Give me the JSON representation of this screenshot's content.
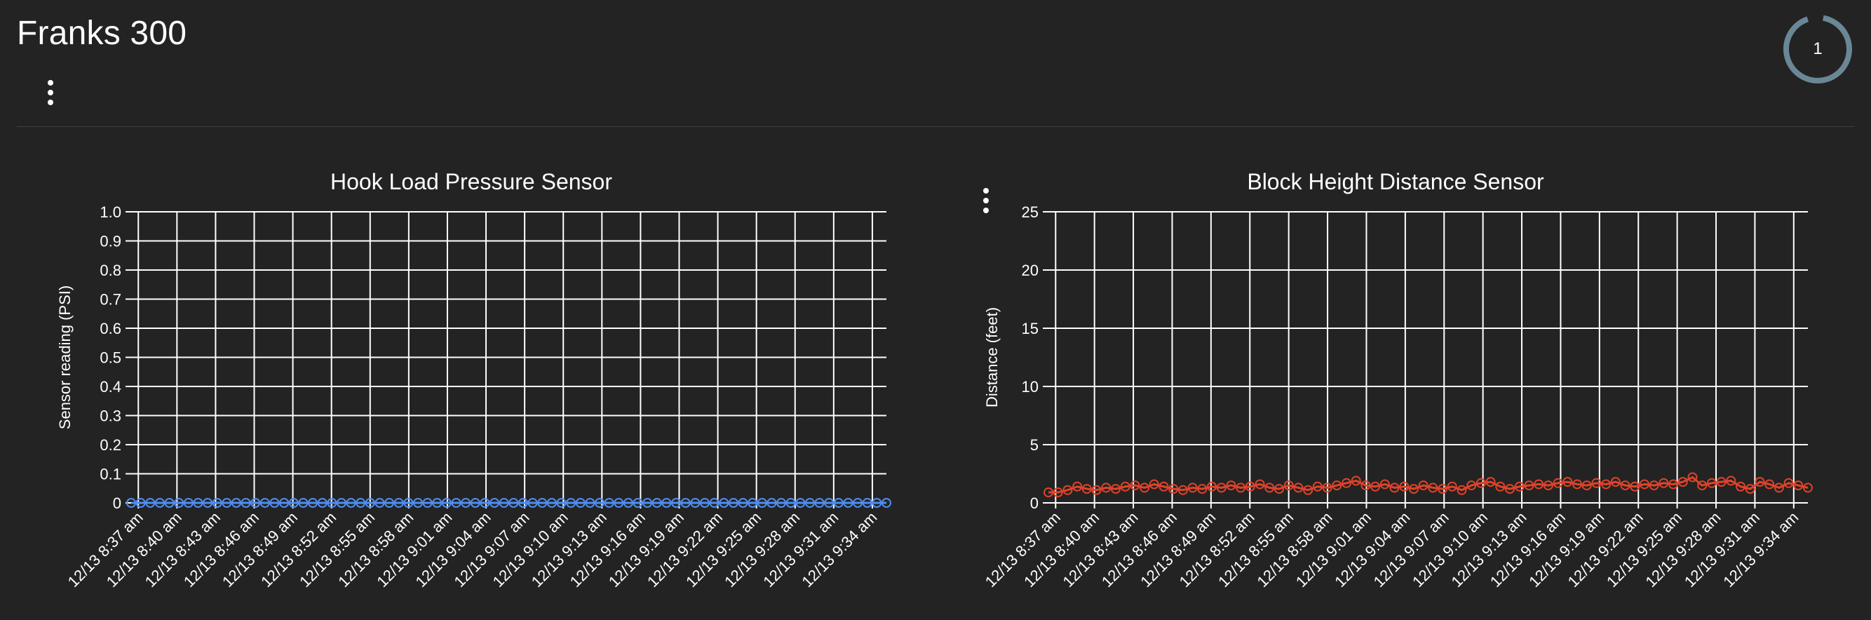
{
  "header": {
    "title": "Franks 300",
    "refresh_count": "1"
  },
  "colors": {
    "background": "#232323",
    "grid": "#ffffff",
    "pressure_series": "#4f8ef0",
    "distance_series": "#e0432a",
    "refresh_ring": "#6a8796"
  },
  "icons": {
    "header_menu": "more-vert-icon",
    "chart_menu": "more-vert-icon",
    "refresh": "refresh-ring-icon"
  },
  "chart_data": [
    {
      "type": "line",
      "title": "Hook Load Pressure Sensor",
      "xlabel": "",
      "ylabel": "Sensor reading (PSI)",
      "ylim": [
        0,
        1.0
      ],
      "yticks": [
        "0",
        "0.1",
        "0.2",
        "0.3",
        "0.4",
        "0.5",
        "0.6",
        "0.7",
        "0.8",
        "0.9",
        "1.0"
      ],
      "grid": true,
      "x_tick_labels": [
        "12/13 8:37 am",
        "12/13 8:40 am",
        "12/13 8:43 am",
        "12/13 8:46 am",
        "12/13 8:49 am",
        "12/13 8:52 am",
        "12/13 8:55 am",
        "12/13 8:58 am",
        "12/13 9:01 am",
        "12/13 9:04 am",
        "12/13 9:07 am",
        "12/13 9:10 am",
        "12/13 9:13 am",
        "12/13 9:16 am",
        "12/13 9:19 am",
        "12/13 9:22 am",
        "12/13 9:25 am",
        "12/13 9:28 am",
        "12/13 9:31 am",
        "12/13 9:34 am"
      ],
      "x_range": [
        "12/13 8:36 am",
        "12/13 9:36 am"
      ],
      "series": [
        {
          "color": "#4f8ef0",
          "marker": "open-circle",
          "values": [
            0,
            0,
            0,
            0,
            0,
            0,
            0,
            0,
            0,
            0,
            0,
            0,
            0,
            0,
            0,
            0,
            0,
            0,
            0,
            0,
            0,
            0,
            0,
            0,
            0,
            0,
            0,
            0,
            0,
            0,
            0,
            0,
            0,
            0,
            0,
            0,
            0,
            0,
            0,
            0,
            0,
            0,
            0,
            0,
            0,
            0,
            0,
            0,
            0,
            0,
            0,
            0,
            0,
            0,
            0,
            0,
            0,
            0,
            0,
            0,
            0,
            0,
            0,
            0,
            0,
            0,
            0,
            0,
            0,
            0,
            0,
            0,
            0,
            0,
            0,
            0,
            0,
            0,
            0,
            0
          ]
        }
      ]
    },
    {
      "type": "line",
      "title": "Block Height Distance Sensor",
      "xlabel": "",
      "ylabel": "Distance (feet)",
      "ylim": [
        0,
        25
      ],
      "yticks": [
        "0",
        "5",
        "10",
        "15",
        "20",
        "25"
      ],
      "grid": true,
      "x_tick_labels": [
        "12/13 8:37 am",
        "12/13 8:40 am",
        "12/13 8:43 am",
        "12/13 8:46 am",
        "12/13 8:49 am",
        "12/13 8:52 am",
        "12/13 8:55 am",
        "12/13 8:58 am",
        "12/13 9:01 am",
        "12/13 9:04 am",
        "12/13 9:07 am",
        "12/13 9:10 am",
        "12/13 9:13 am",
        "12/13 9:16 am",
        "12/13 9:19 am",
        "12/13 9:22 am",
        "12/13 9:25 am",
        "12/13 9:28 am",
        "12/13 9:31 am",
        "12/13 9:34 am"
      ],
      "x_range": [
        "12/13 8:36 am",
        "12/13 9:36 am"
      ],
      "series": [
        {
          "color": "#e0432a",
          "marker": "open-circle",
          "values": [
            0.9,
            0.9,
            1.1,
            1.4,
            1.2,
            1.1,
            1.3,
            1.2,
            1.4,
            1.5,
            1.3,
            1.6,
            1.4,
            1.2,
            1.1,
            1.3,
            1.2,
            1.4,
            1.3,
            1.5,
            1.3,
            1.4,
            1.6,
            1.3,
            1.2,
            1.5,
            1.3,
            1.1,
            1.4,
            1.3,
            1.5,
            1.7,
            1.9,
            1.5,
            1.4,
            1.6,
            1.3,
            1.4,
            1.2,
            1.5,
            1.3,
            1.2,
            1.4,
            1.1,
            1.5,
            1.7,
            1.8,
            1.4,
            1.2,
            1.4,
            1.5,
            1.6,
            1.5,
            1.7,
            1.8,
            1.6,
            1.5,
            1.7,
            1.6,
            1.8,
            1.5,
            1.4,
            1.6,
            1.5,
            1.7,
            1.6,
            1.8,
            2.2,
            1.5,
            1.7,
            1.8,
            1.9,
            1.4,
            1.2,
            1.8,
            1.6,
            1.3,
            1.7,
            1.5,
            1.3
          ]
        }
      ]
    }
  ]
}
